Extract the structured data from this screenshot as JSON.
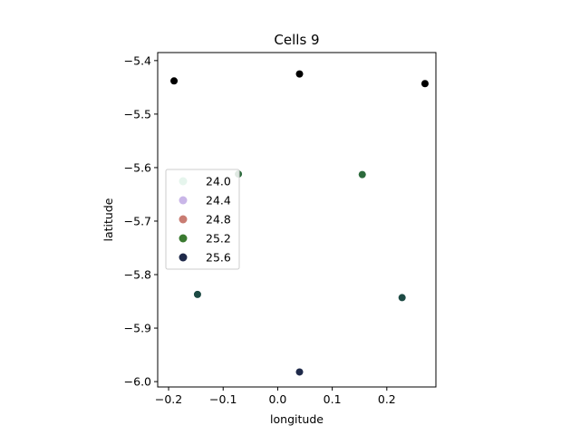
{
  "chart_data": {
    "type": "scatter",
    "title": "Cells 9",
    "xlabel": "longitude",
    "ylabel": "latitude",
    "xlim": [
      -0.22,
      0.29
    ],
    "ylim": [
      -6.01,
      -5.385
    ],
    "xticks": [
      -0.2,
      -0.1,
      0.0,
      0.1,
      0.2
    ],
    "xtick_labels": [
      "−0.2",
      "−0.1",
      "0.0",
      "0.1",
      "0.2"
    ],
    "yticks": [
      -5.4,
      -5.5,
      -5.6,
      -5.7,
      -5.8,
      -5.9,
      -6.0
    ],
    "ytick_labels": [
      "−5.4",
      "−5.5",
      "−5.6",
      "−5.7",
      "−5.8",
      "−5.9",
      "−6.0"
    ],
    "grid": false,
    "legend_position": "center-left",
    "legend": [
      {
        "label": "24.0",
        "color": "#e6f5ed"
      },
      {
        "label": "24.4",
        "color": "#c9b6e8"
      },
      {
        "label": "24.8",
        "color": "#c97c72"
      },
      {
        "label": "25.2",
        "color": "#3a7a30"
      },
      {
        "label": "25.6",
        "color": "#1f2a4a"
      }
    ],
    "points": [
      {
        "x": -0.19,
        "y": -5.438,
        "value": 26.0,
        "color": "#000000"
      },
      {
        "x": 0.04,
        "y": -5.425,
        "value": 26.0,
        "color": "#000000"
      },
      {
        "x": 0.27,
        "y": -5.443,
        "value": 26.0,
        "color": "#000000"
      },
      {
        "x": -0.072,
        "y": -5.612,
        "value": 25.2,
        "color": "#2c6a3c"
      },
      {
        "x": 0.155,
        "y": -5.613,
        "value": 25.2,
        "color": "#2c6a3c"
      },
      {
        "x": -0.147,
        "y": -5.837,
        "value": 25.4,
        "color": "#1d4a44"
      },
      {
        "x": 0.228,
        "y": -5.843,
        "value": 25.4,
        "color": "#1d4a44"
      },
      {
        "x": 0.04,
        "y": -5.982,
        "value": 25.6,
        "color": "#1f2a4a"
      }
    ]
  }
}
